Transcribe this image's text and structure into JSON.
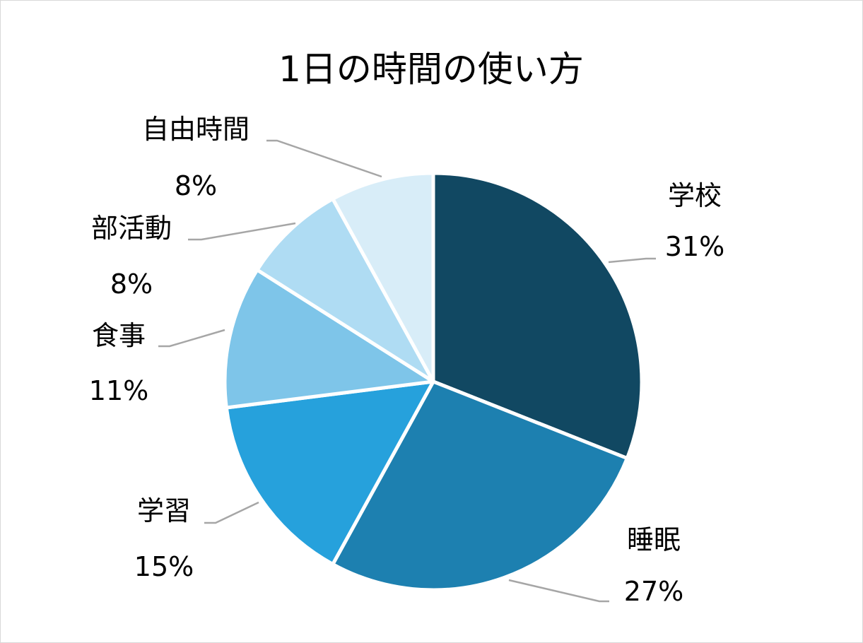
{
  "chart_data": {
    "type": "pie",
    "title": "1日の時間の使い方",
    "start_angle_deg": 0,
    "direction": "clockwise",
    "legend": "none",
    "slices": [
      {
        "label": "学校",
        "value": 31,
        "value_label": "31%",
        "color": "#114862"
      },
      {
        "label": "睡眠",
        "value": 27,
        "value_label": "27%",
        "color": "#1d80b0"
      },
      {
        "label": "学習",
        "value": 15,
        "value_label": "15%",
        "color": "#26a1dc"
      },
      {
        "label": "食事",
        "value": 11,
        "value_label": "11%",
        "color": "#7ec5e9"
      },
      {
        "label": "部活動",
        "value": 8,
        "value_label": "8%",
        "color": "#afdcf3"
      },
      {
        "label": "自由時間",
        "value": 8,
        "value_label": "8%",
        "color": "#d8edf8"
      }
    ]
  }
}
